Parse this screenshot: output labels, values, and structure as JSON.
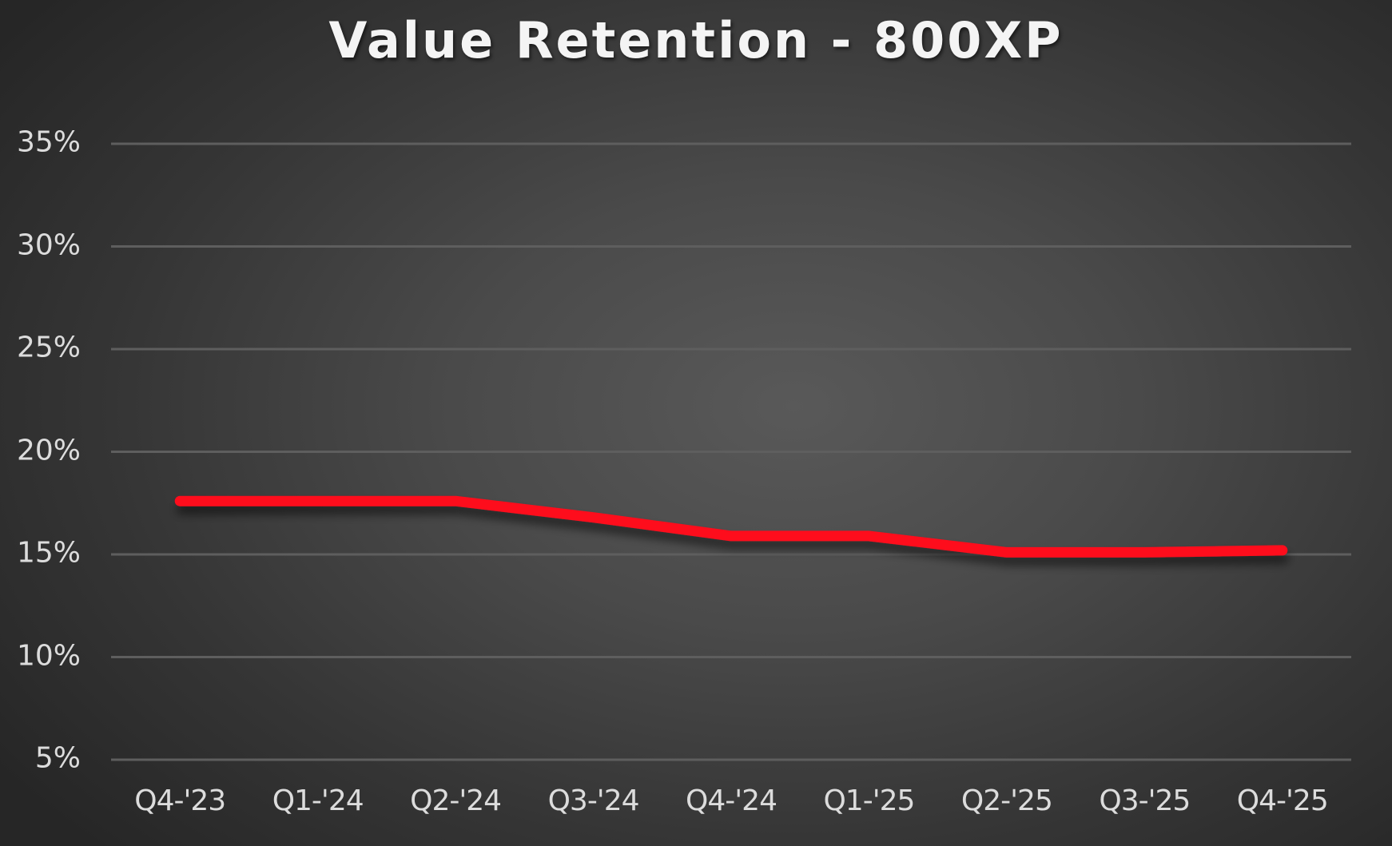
{
  "chart": {
    "title": "Value Retention - 800XP",
    "y_ticks": [
      "35%",
      "30%",
      "25%",
      "20%",
      "15%",
      "10%",
      "5%"
    ],
    "x_ticks": [
      "Q4-'23",
      "Q1-'24",
      "Q2-'24",
      "Q3-'24",
      "Q4-'24",
      "Q1-'25",
      "Q2-'25",
      "Q3-'25",
      "Q4-'25"
    ],
    "colors": {
      "line": "#fe0a1a",
      "gridline": "#5e5e5e",
      "text": "#dcdcdc",
      "title": "#f4f4f4"
    }
  },
  "chart_data": {
    "type": "line",
    "title": "Value Retention - 800XP",
    "xlabel": "",
    "ylabel": "",
    "categories": [
      "Q4-'23",
      "Q1-'24",
      "Q2-'24",
      "Q3-'24",
      "Q4-'24",
      "Q1-'25",
      "Q2-'25",
      "Q3-'25",
      "Q4-'25"
    ],
    "series": [
      {
        "name": "800XP",
        "color": "#fe0a1a",
        "values": [
          17.6,
          17.6,
          17.6,
          16.8,
          15.9,
          15.9,
          15.1,
          15.1,
          15.2
        ]
      }
    ],
    "ylim": [
      5,
      35
    ],
    "y_tick_step": 5,
    "y_format": "percent",
    "grid": "horizontal",
    "legend": "none"
  }
}
